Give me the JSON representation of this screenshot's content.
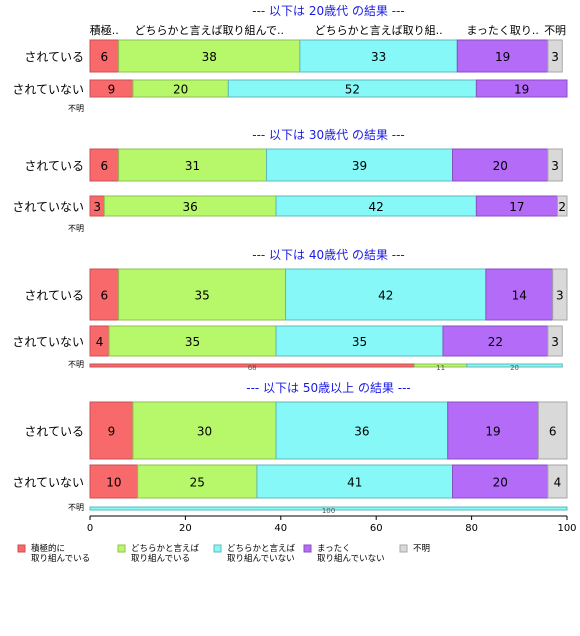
{
  "chart_data": {
    "type": "bar",
    "orientation": "horizontal",
    "stacked": true,
    "xlim": [
      0,
      100
    ],
    "x_ticks": [
      "0",
      "20",
      "40",
      "60",
      "80",
      "100"
    ],
    "header_labels": [
      "積極..",
      "どちらかと言えば取り組んで..",
      "どちらかと言えば取り組..",
      "まったく取り..",
      "不明"
    ],
    "legend": {
      "placement": "bottom",
      "items": [
        {
          "label": "積極的に\n取り組んでいる",
          "color": "#F8696B"
        },
        {
          "label": "どちらかと言えば\n取り組んでいる",
          "color": "#B7F86B"
        },
        {
          "label": "どちらかと言えば\n取り組んでいない",
          "color": "#86F8F8"
        },
        {
          "label": "まったく\n取り組んでいない",
          "color": "#B46BF8"
        },
        {
          "label": "不明",
          "color": "#D9D9D9"
        }
      ]
    },
    "groups": [
      {
        "title": "--- 以下は 20歳代 の結果 ---",
        "rows": [
          {
            "category": "されている",
            "values": [
              6,
              38,
              33,
              19,
              3
            ],
            "labels": [
              "6",
              "38",
              "33",
              "19",
              "3"
            ]
          },
          {
            "category": "されていない",
            "values": [
              9,
              20,
              52,
              19,
              0
            ],
            "labels": [
              "9",
              "20",
              "52",
              "19",
              ""
            ]
          },
          {
            "category": "不明",
            "values": [],
            "labels": []
          }
        ]
      },
      {
        "title": "--- 以下は 30歳代 の結果 ---",
        "rows": [
          {
            "category": "されている",
            "values": [
              6,
              31,
              39,
              20,
              3
            ],
            "labels": [
              "6",
              "31",
              "39",
              "20",
              "3"
            ]
          },
          {
            "category": "されていない",
            "values": [
              3,
              36,
              42,
              17,
              2
            ],
            "labels": [
              "3",
              "36",
              "42",
              "17",
              "2"
            ]
          },
          {
            "category": "不明",
            "values": [],
            "labels": []
          }
        ]
      },
      {
        "title": "--- 以下は 40歳代 の結果 ---",
        "rows": [
          {
            "category": "されている",
            "values": [
              6,
              35,
              42,
              14,
              3
            ],
            "labels": [
              "6",
              "35",
              "42",
              "14",
              "3"
            ]
          },
          {
            "category": "されていない",
            "values": [
              4,
              35,
              35,
              22,
              3
            ],
            "labels": [
              "4",
              "35",
              "35",
              "22",
              "3"
            ]
          },
          {
            "category": "不明",
            "values": [
              68,
              11,
              20,
              0,
              0
            ],
            "labels": [
              "68",
              "11",
              "20",
              "",
              ""
            ]
          }
        ]
      },
      {
        "title": "--- 以下は 50歳以上 の結果 ---",
        "rows": [
          {
            "category": "されている",
            "values": [
              9,
              30,
              36,
              19,
              6
            ],
            "labels": [
              "9",
              "30",
              "36",
              "19",
              "6"
            ]
          },
          {
            "category": "されていない",
            "values": [
              10,
              25,
              41,
              20,
              4
            ],
            "labels": [
              "10",
              "25",
              "41",
              "20",
              "4"
            ]
          },
          {
            "category": "不明",
            "values": [
              0,
              0,
              100,
              0,
              0
            ],
            "labels": [
              "",
              "",
              "100",
              "",
              ""
            ]
          }
        ]
      }
    ]
  }
}
